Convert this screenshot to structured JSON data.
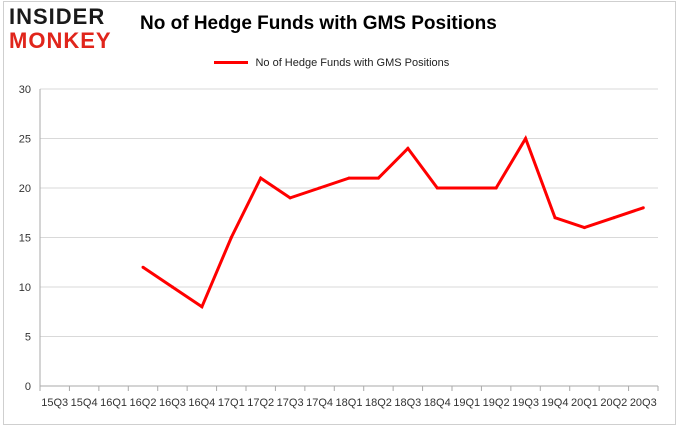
{
  "logo": {
    "line1": "INSIDER",
    "line2": "MONKEY"
  },
  "chart_data": {
    "type": "line",
    "title": "No of Hedge Funds with GMS Positions",
    "xlabel": "",
    "ylabel": "",
    "categories": [
      "15Q3",
      "15Q4",
      "16Q1",
      "16Q2",
      "16Q3",
      "16Q4",
      "17Q1",
      "17Q2",
      "17Q3",
      "17Q4",
      "18Q1",
      "18Q2",
      "18Q3",
      "18Q4",
      "19Q1",
      "19Q2",
      "19Q3",
      "19Q4",
      "20Q1",
      "20Q2",
      "20Q3"
    ],
    "series": [
      {
        "name": "No of Hedge Funds with GMS Positions",
        "color": "#ff0000",
        "values": [
          null,
          null,
          null,
          12,
          10,
          8,
          15,
          21,
          19,
          20,
          21,
          21,
          24,
          20,
          20,
          20,
          25,
          17,
          16,
          17,
          18
        ]
      }
    ],
    "ylim": [
      0,
      30
    ],
    "yticks": [
      0,
      5,
      10,
      15,
      20,
      25,
      30
    ],
    "grid": true,
    "legend": "top-center"
  }
}
